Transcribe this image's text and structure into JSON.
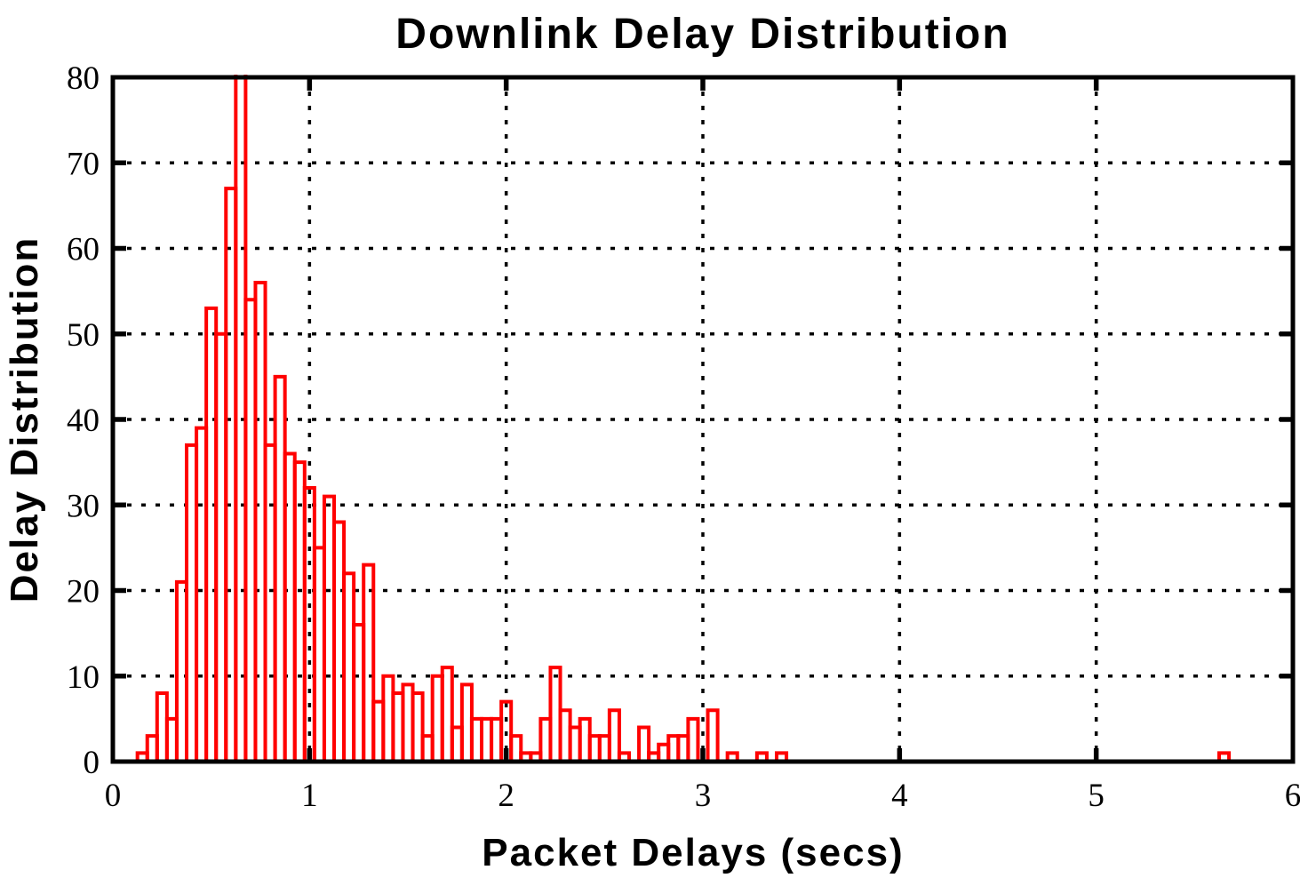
{
  "page": {
    "background": "#ffffff"
  },
  "colors": {
    "bar_stroke": "#ff0000",
    "axis": "#000000",
    "grid": "#000000",
    "background": "#ffffff"
  },
  "chart_data": {
    "type": "bar",
    "title": "Downlink Delay Distribution",
    "xlabel": "Packet Delays (secs)",
    "ylabel": "Delay Distribution",
    "xlim": [
      0,
      6
    ],
    "ylim": [
      0,
      80
    ],
    "x_ticks": [
      0,
      1,
      2,
      3,
      4,
      5,
      6
    ],
    "y_ticks": [
      0,
      10,
      20,
      30,
      40,
      50,
      60,
      70,
      80
    ],
    "grid": {
      "style": "dotted",
      "vertical_at": [
        1,
        2,
        3,
        4,
        5
      ],
      "horizontal_at": [
        10,
        20,
        30,
        40,
        50,
        60,
        70
      ]
    },
    "legend": "none",
    "bar_style": {
      "stroke": "#ff0000",
      "fill": "none",
      "stroke_width": 4,
      "bin_width": 0.05
    },
    "bins": [
      {
        "x": 0.15,
        "count": 1
      },
      {
        "x": 0.2,
        "count": 3
      },
      {
        "x": 0.25,
        "count": 8
      },
      {
        "x": 0.3,
        "count": 5
      },
      {
        "x": 0.35,
        "count": 21
      },
      {
        "x": 0.4,
        "count": 37
      },
      {
        "x": 0.45,
        "count": 39
      },
      {
        "x": 0.5,
        "count": 53
      },
      {
        "x": 0.55,
        "count": 50
      },
      {
        "x": 0.6,
        "count": 67
      },
      {
        "x": 0.65,
        "count": ">80",
        "clipped": true
      },
      {
        "x": 0.7,
        "count": 54
      },
      {
        "x": 0.75,
        "count": 56
      },
      {
        "x": 0.8,
        "count": 37
      },
      {
        "x": 0.85,
        "count": 45
      },
      {
        "x": 0.9,
        "count": 36
      },
      {
        "x": 0.95,
        "count": 35
      },
      {
        "x": 1.0,
        "count": 32
      },
      {
        "x": 1.05,
        "count": 25
      },
      {
        "x": 1.1,
        "count": 31
      },
      {
        "x": 1.15,
        "count": 28
      },
      {
        "x": 1.2,
        "count": 22
      },
      {
        "x": 1.25,
        "count": 16
      },
      {
        "x": 1.3,
        "count": 23
      },
      {
        "x": 1.35,
        "count": 7
      },
      {
        "x": 1.4,
        "count": 10
      },
      {
        "x": 1.45,
        "count": 8
      },
      {
        "x": 1.5,
        "count": 9
      },
      {
        "x": 1.55,
        "count": 8
      },
      {
        "x": 1.6,
        "count": 3
      },
      {
        "x": 1.65,
        "count": 10
      },
      {
        "x": 1.7,
        "count": 11
      },
      {
        "x": 1.75,
        "count": 4
      },
      {
        "x": 1.8,
        "count": 9
      },
      {
        "x": 1.85,
        "count": 5
      },
      {
        "x": 1.9,
        "count": 5
      },
      {
        "x": 1.95,
        "count": 5
      },
      {
        "x": 2.0,
        "count": 7
      },
      {
        "x": 2.05,
        "count": 3
      },
      {
        "x": 2.1,
        "count": 1
      },
      {
        "x": 2.15,
        "count": 1
      },
      {
        "x": 2.2,
        "count": 5
      },
      {
        "x": 2.25,
        "count": 11
      },
      {
        "x": 2.3,
        "count": 6
      },
      {
        "x": 2.35,
        "count": 4
      },
      {
        "x": 2.4,
        "count": 5
      },
      {
        "x": 2.45,
        "count": 3
      },
      {
        "x": 2.5,
        "count": 3
      },
      {
        "x": 2.55,
        "count": 6
      },
      {
        "x": 2.6,
        "count": 1
      },
      {
        "x": 2.65,
        "count": 0
      },
      {
        "x": 2.7,
        "count": 4
      },
      {
        "x": 2.75,
        "count": 1
      },
      {
        "x": 2.8,
        "count": 2
      },
      {
        "x": 2.85,
        "count": 3
      },
      {
        "x": 2.9,
        "count": 3
      },
      {
        "x": 2.95,
        "count": 5
      },
      {
        "x": 3.0,
        "count": 0
      },
      {
        "x": 3.05,
        "count": 6
      },
      {
        "x": 3.1,
        "count": 0
      },
      {
        "x": 3.15,
        "count": 1
      },
      {
        "x": 3.2,
        "count": 0
      },
      {
        "x": 3.25,
        "count": 0
      },
      {
        "x": 3.3,
        "count": 1
      },
      {
        "x": 3.35,
        "count": 0
      },
      {
        "x": 3.4,
        "count": 1
      },
      {
        "x": 5.65,
        "count": 1
      }
    ],
    "notes": "Bar at x=0.65 extends above the y-axis maximum of 80 and is drawn clipped at the top plot border."
  }
}
